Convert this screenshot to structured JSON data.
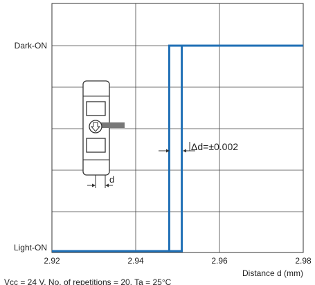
{
  "chart_data": {
    "type": "line",
    "y_levels": [
      "Light-ON",
      "Dark-ON"
    ],
    "x_ticks": [
      "2.92",
      "2.94",
      "2.96",
      "2.98"
    ],
    "xlim": [
      2.92,
      2.98
    ],
    "xlabel": "Distance d (mm)",
    "grid": true,
    "series": [
      {
        "x": [
          2.92,
          2.948,
          2.948,
          2.98
        ],
        "y": [
          0,
          0,
          1,
          1
        ],
        "color": "#1f6fb5"
      },
      {
        "x": [
          2.92,
          2.951,
          2.951,
          2.98
        ],
        "y": [
          0,
          0,
          1,
          1
        ],
        "color": "#1f6fb5"
      }
    ],
    "annotation": "Δd=±0.002",
    "inset_label": "d",
    "footer": "Vcc = 24 V, No. of repetitions = 20, Ta = 25°C"
  }
}
